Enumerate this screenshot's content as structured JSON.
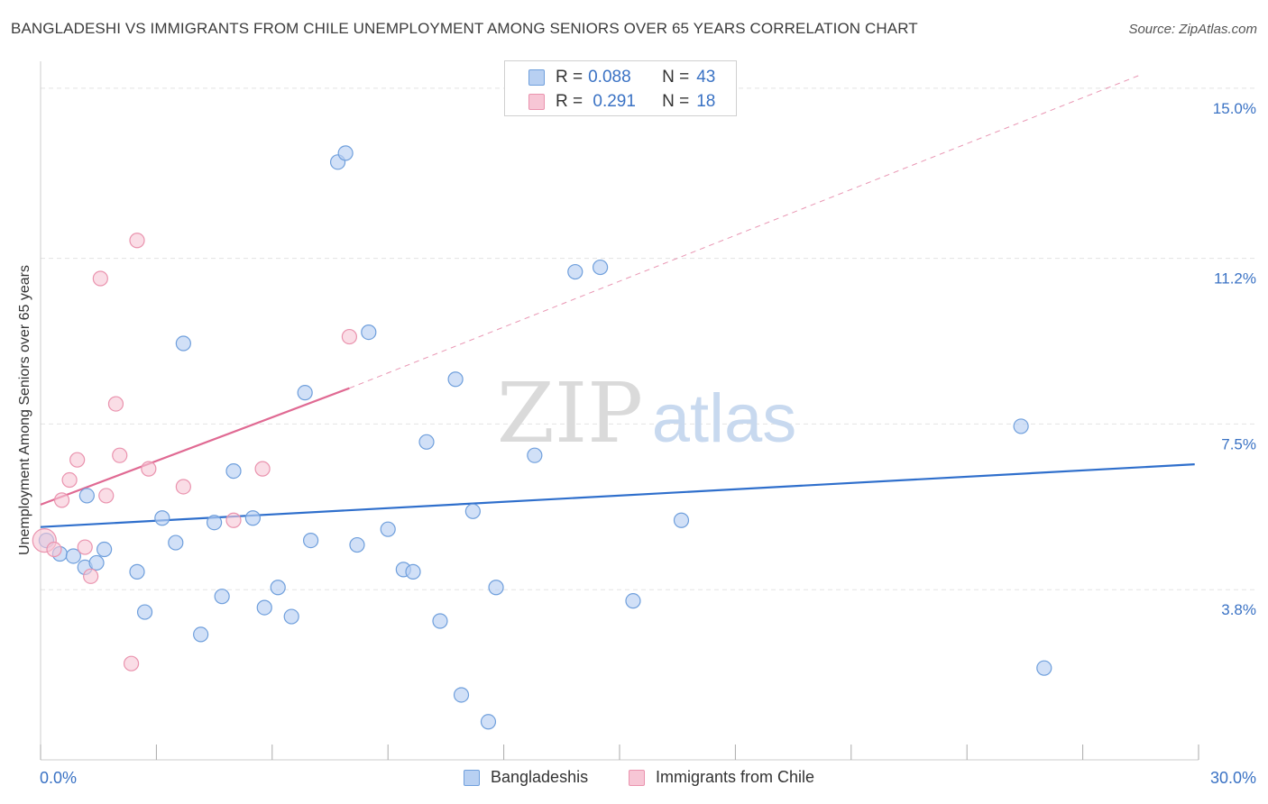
{
  "title": "BANGLADESHI VS IMMIGRANTS FROM CHILE UNEMPLOYMENT AMONG SENIORS OVER 65 YEARS CORRELATION CHART",
  "source": "Source: ZipAtlas.com",
  "watermark": {
    "zip": "ZIP",
    "atlas": "atlas"
  },
  "legend": {
    "rows": [
      {
        "r_label": "R = ",
        "r_value": "0.088",
        "n_label": "N = ",
        "n_value": "43"
      },
      {
        "r_label": "R = ",
        "r_value": " 0.291",
        "n_label": "N = ",
        "n_value": "18"
      }
    ]
  },
  "colors": {
    "blue_fill": "#b8d0f2",
    "blue_stroke": "#6f9fdc",
    "blue_line": "#2f6fcc",
    "pink_fill": "#f7c6d5",
    "pink_stroke": "#ea93ae",
    "pink_line": "#e06a93",
    "grid": "#e3e3e3",
    "tick_text": "#3a72c4"
  },
  "chart_data": {
    "type": "scatter",
    "title": "BANGLADESHI VS IMMIGRANTS FROM CHILE UNEMPLOYMENT AMONG SENIORS OVER 65 YEARS CORRELATION CHART",
    "xlabel": "",
    "ylabel": "Unemployment Among Seniors over 65 years",
    "xlim": [
      0,
      30
    ],
    "ylim": [
      0,
      15.4
    ],
    "x_tick_labels": [
      "0.0%",
      "30.0%"
    ],
    "y_ticks": [
      3.8,
      7.5,
      11.2,
      15.0
    ],
    "y_tick_labels": [
      "3.8%",
      "7.5%",
      "11.2%",
      "15.0%"
    ],
    "grid": true,
    "legend_position": "top-center",
    "series": [
      {
        "name": "Bangladeshis",
        "color": "#6f9fdc",
        "trend": {
          "x": [
            0,
            29.9
          ],
          "y": [
            5.2,
            6.6
          ],
          "style": "solid"
        },
        "points": [
          [
            0.15,
            4.9
          ],
          [
            0.5,
            4.6
          ],
          [
            0.85,
            4.55
          ],
          [
            1.15,
            4.3
          ],
          [
            1.2,
            5.9
          ],
          [
            1.45,
            4.4
          ],
          [
            1.65,
            4.7
          ],
          [
            2.5,
            4.2
          ],
          [
            2.7,
            3.3
          ],
          [
            3.15,
            5.4
          ],
          [
            3.5,
            4.85
          ],
          [
            3.7,
            9.3
          ],
          [
            4.15,
            2.8
          ],
          [
            4.5,
            5.3
          ],
          [
            4.7,
            3.65
          ],
          [
            5.0,
            6.45
          ],
          [
            5.5,
            5.4
          ],
          [
            5.8,
            3.4
          ],
          [
            6.15,
            3.85
          ],
          [
            6.5,
            3.2
          ],
          [
            6.85,
            8.2
          ],
          [
            7.0,
            4.9
          ],
          [
            7.7,
            13.35
          ],
          [
            7.9,
            13.55
          ],
          [
            8.2,
            4.8
          ],
          [
            8.5,
            9.55
          ],
          [
            9.0,
            5.15
          ],
          [
            9.4,
            4.25
          ],
          [
            9.65,
            4.2
          ],
          [
            10.0,
            7.1
          ],
          [
            10.35,
            3.1
          ],
          [
            10.75,
            8.5
          ],
          [
            10.9,
            1.45
          ],
          [
            11.2,
            5.55
          ],
          [
            11.6,
            0.85
          ],
          [
            11.8,
            3.85
          ],
          [
            12.8,
            6.8
          ],
          [
            13.85,
            10.9
          ],
          [
            14.5,
            11.0
          ],
          [
            15.35,
            3.55
          ],
          [
            16.6,
            5.35
          ],
          [
            25.4,
            7.45
          ],
          [
            26.0,
            2.05
          ]
        ]
      },
      {
        "name": "Immigrants from Chile",
        "color": "#ea93ae",
        "trend": {
          "x": [
            0,
            8.0
          ],
          "y": [
            5.7,
            8.3
          ],
          "style": "solid",
          "extended": {
            "x": [
              8.0,
              28.5
            ],
            "y": [
              8.3,
              15.3
            ]
          }
        },
        "points": [
          [
            0.1,
            4.9
          ],
          [
            0.35,
            4.7
          ],
          [
            0.55,
            5.8
          ],
          [
            0.75,
            6.25
          ],
          [
            0.95,
            6.7
          ],
          [
            1.15,
            4.75
          ],
          [
            1.3,
            4.1
          ],
          [
            1.55,
            10.75
          ],
          [
            1.7,
            5.9
          ],
          [
            1.95,
            7.95
          ],
          [
            2.05,
            6.8
          ],
          [
            2.35,
            2.15
          ],
          [
            2.5,
            11.6
          ],
          [
            2.8,
            6.5
          ],
          [
            3.7,
            6.1
          ],
          [
            5.0,
            5.35
          ],
          [
            5.75,
            6.5
          ],
          [
            8.0,
            9.45
          ]
        ]
      }
    ]
  },
  "bottom_legend": [
    {
      "label": "Bangladeshis"
    },
    {
      "label": "Immigrants from Chile"
    }
  ]
}
